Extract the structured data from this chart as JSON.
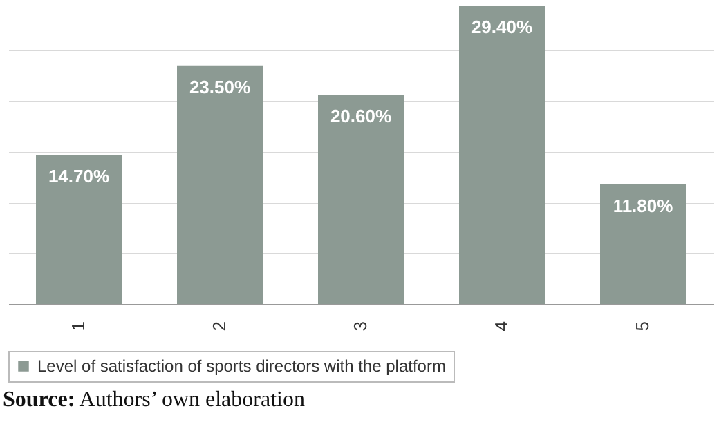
{
  "chart_data": {
    "type": "bar",
    "categories": [
      "1",
      "2",
      "3",
      "4",
      "5"
    ],
    "series": [
      {
        "name": "Level of satisfaction of sports directors with the platform",
        "color": "#8c9a93",
        "values": [
          14.7,
          23.5,
          20.6,
          29.4,
          11.8
        ],
        "value_labels": [
          "14.70%",
          "23.50%",
          "20.60%",
          "29.40%",
          "11.80%"
        ]
      }
    ],
    "tick_labels": "x",
    "grid": "y",
    "legend": "bottom",
    "annotations": [
      "Source: Authors’ own elaboration"
    ]
  }
}
